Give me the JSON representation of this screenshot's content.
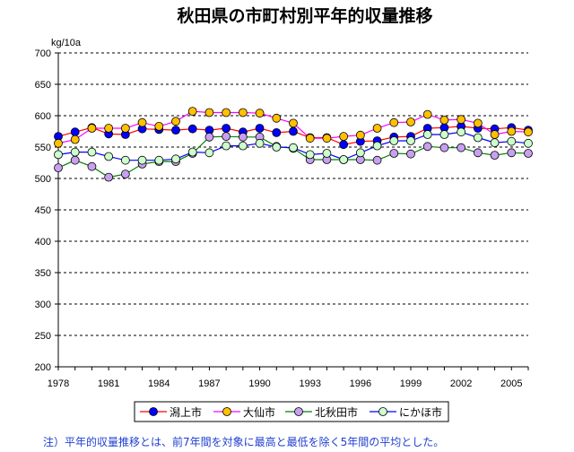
{
  "chart_data": {
    "type": "line",
    "title": "秋田県の市町村別平年的収量推移",
    "ylabel": "kg/10a",
    "xlabel": "",
    "ylim": [
      200,
      700
    ],
    "yticks": [
      200,
      250,
      300,
      350,
      400,
      450,
      500,
      550,
      600,
      650,
      700
    ],
    "xlim": [
      1978,
      2006
    ],
    "xticks": [
      1978,
      1981,
      1984,
      1987,
      1990,
      1993,
      1996,
      1999,
      2002,
      2005
    ],
    "grid": "horizontal dashed",
    "legend_position": "bottom",
    "x": [
      1978,
      1979,
      1980,
      1981,
      1982,
      1983,
      1984,
      1985,
      1986,
      1987,
      1988,
      1989,
      1990,
      1991,
      1992,
      1993,
      1994,
      1995,
      1996,
      1997,
      1998,
      1999,
      2000,
      2001,
      2002,
      2003,
      2004,
      2005,
      2006
    ],
    "series": [
      {
        "name": "潟上市",
        "line_color": "#ff0000",
        "marker_color": "#0000ff",
        "values": [
          567,
          574,
          581,
          571,
          570,
          579,
          578,
          577,
          579,
          577,
          580,
          574,
          580,
          573,
          575,
          565,
          565,
          554,
          559,
          560,
          566,
          567,
          580,
          581,
          583,
          580,
          579,
          581,
          577
        ]
      },
      {
        "name": "大仙市",
        "line_color": "#ff00ff",
        "marker_color": "#ffc000",
        "values": [
          556,
          562,
          580,
          580,
          580,
          589,
          583,
          591,
          607,
          605,
          605,
          605,
          604,
          596,
          588,
          564,
          564,
          567,
          569,
          580,
          589,
          590,
          602,
          593,
          594,
          588,
          570,
          575,
          574
        ]
      },
      {
        "name": "北秋田市",
        "line_color": "#008000",
        "marker_color": "#c8a0f0",
        "values": [
          517,
          529,
          519,
          502,
          507,
          523,
          527,
          527,
          540,
          566,
          567,
          566,
          566,
          551,
          548,
          530,
          530,
          530,
          530,
          529,
          540,
          539,
          551,
          549,
          549,
          541,
          537,
          541,
          540
        ]
      },
      {
        "name": "にかほ市",
        "line_color": "#0000ff",
        "marker_color": "#ccffcc",
        "values": [
          538,
          542,
          542,
          535,
          529,
          529,
          529,
          531,
          542,
          541,
          552,
          552,
          556,
          550,
          549,
          538,
          540,
          530,
          541,
          552,
          560,
          560,
          570,
          570,
          574,
          565,
          557,
          559,
          556
        ]
      }
    ],
    "footnote": "注）平年的収量推移とは、前7年間を対象に最高と最低を除く5年間の平均とした。"
  }
}
